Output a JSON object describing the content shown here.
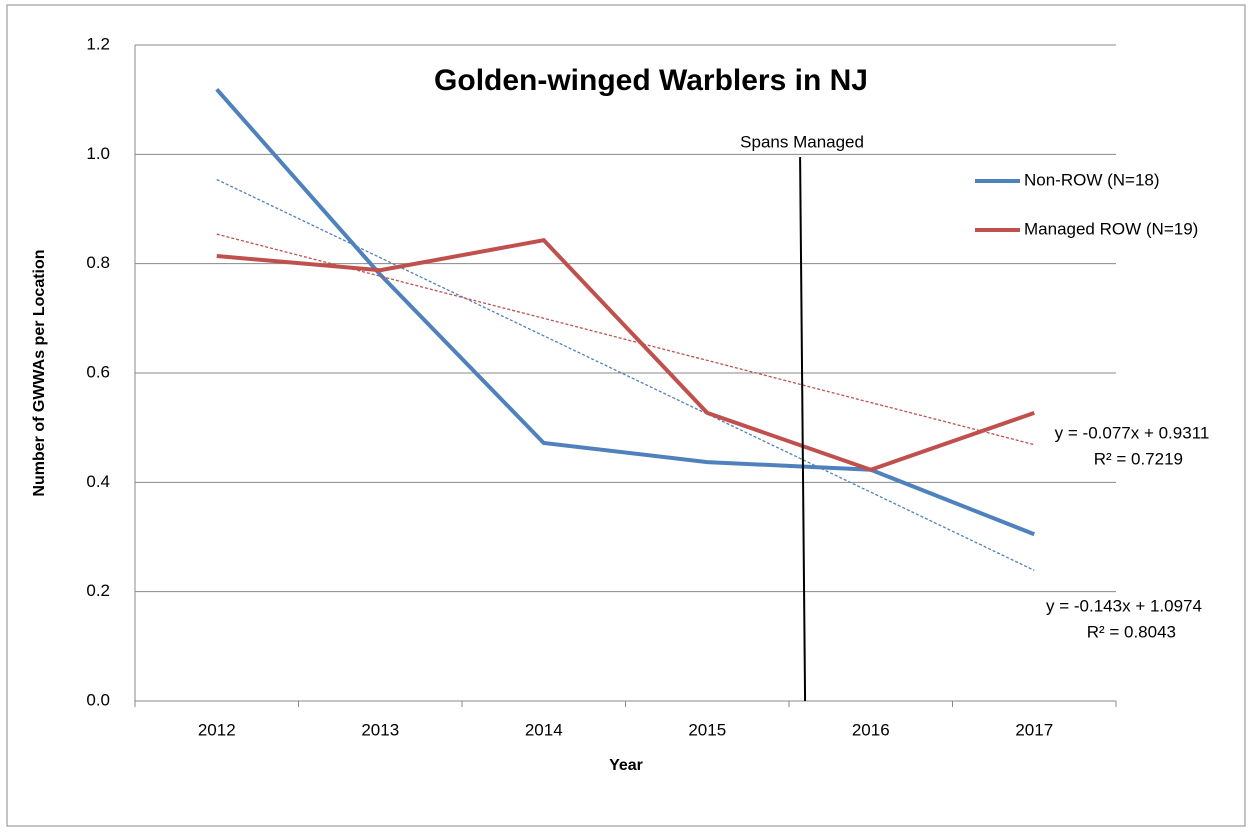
{
  "chart_data": {
    "type": "line",
    "title": "Golden-winged Warblers in NJ",
    "x_label": "Year",
    "y_label": "Number of GWWAs per Location",
    "x": [
      2012,
      2013,
      2014,
      2015,
      2016,
      2017
    ],
    "xlim": [
      2011.5,
      2017.5
    ],
    "ylim": [
      0,
      1.2
    ],
    "yticks": [
      {
        "value": 0,
        "label": "0.0"
      },
      0.2,
      0.4,
      0.6,
      0.8,
      {
        "value": 1,
        "label": "1.0"
      },
      1.2
    ],
    "grid": true,
    "legend": "right",
    "series": [
      {
        "name": "Non-ROW (N=18)",
        "color": "#4f81bd",
        "values": [
          1.119,
          0.78,
          0.472,
          0.437,
          0.423,
          0.305
        ],
        "trend": [
          0.954,
          0.239
        ],
        "equation": "y = -0.143x + 1.0974",
        "r2": "R² = 0.8043"
      },
      {
        "name": "Managed ROW (N=19)",
        "color": "#c0504d",
        "values": [
          0.814,
          0.788,
          0.843,
          0.527,
          0.423,
          0.527
        ],
        "trend": [
          0.854,
          0.469
        ],
        "equation": "y = -0.077x + 0.9311",
        "r2": "R² = 0.7219"
      }
    ],
    "marker": {
      "text": "Spans Managed",
      "x": 2015.58,
      "y_top": 0.995
    }
  }
}
